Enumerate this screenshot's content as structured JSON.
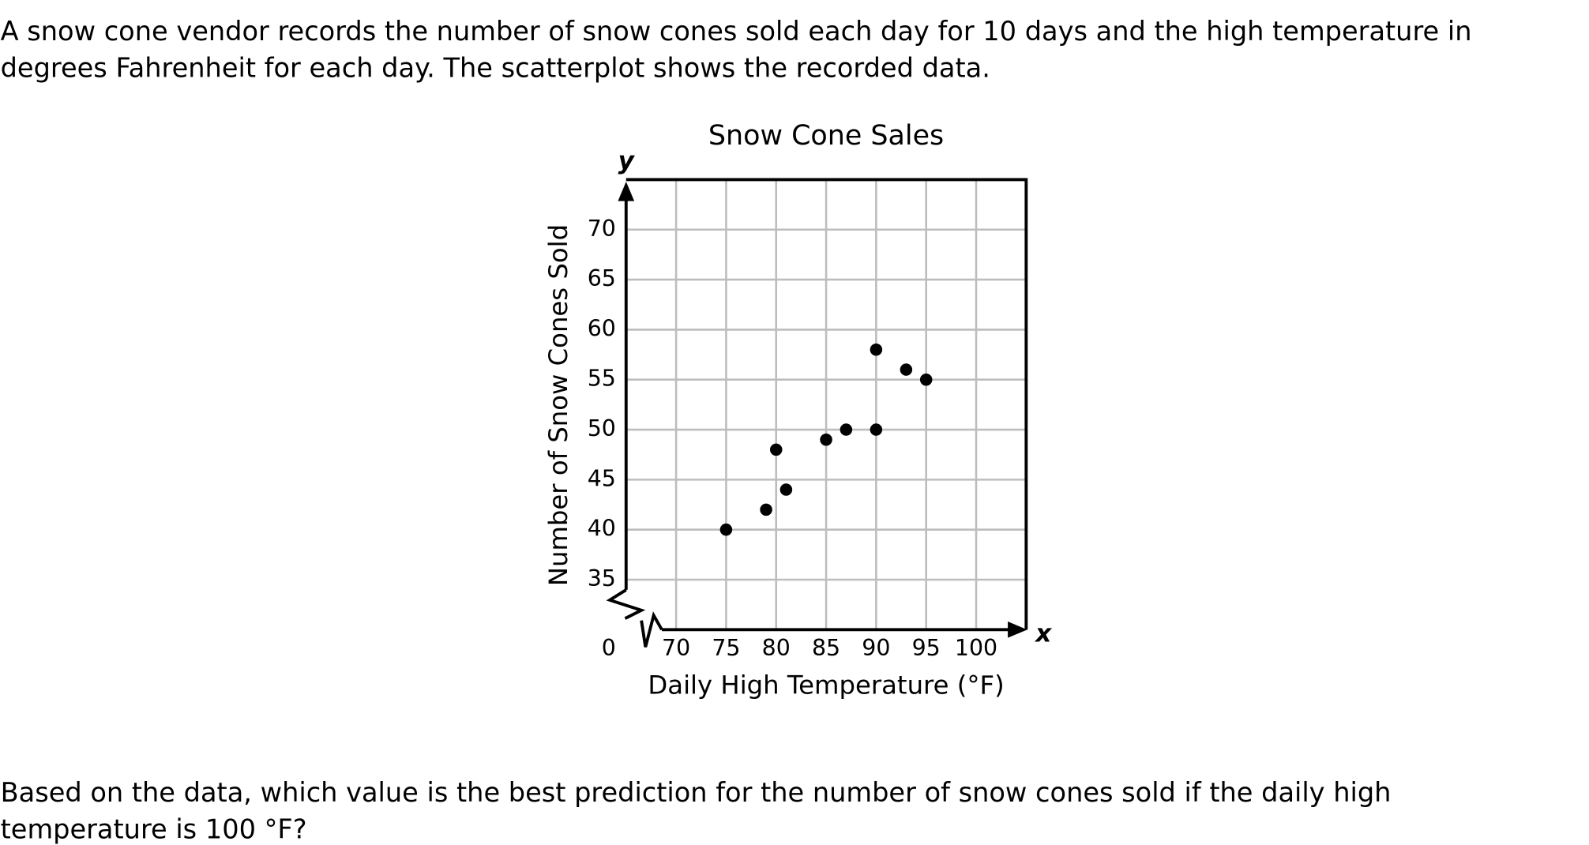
{
  "intro_lines": [
    "A snow cone vendor records the number of snow cones sold each day for 10 days and the high temperature in",
    "degrees Fahrenheit for each day. The scatterplot shows the recorded data."
  ],
  "chart_data": {
    "type": "scatter",
    "title": "Snow Cone Sales",
    "x_axis_label": "Daily High Temperature (°F)",
    "y_axis_label": "Number of Snow Cones Sold",
    "x_axis_letter": "x",
    "y_axis_letter": "y",
    "origin_label": "0",
    "x": [
      75,
      79,
      80,
      81,
      85,
      87,
      90,
      90,
      93,
      95
    ],
    "values": [
      40,
      42,
      48,
      44,
      49,
      50,
      50,
      58,
      56,
      55
    ],
    "color": "#000000",
    "xlim": [
      65,
      105
    ],
    "ylim": [
      30,
      75
    ],
    "xticks": [
      70,
      75,
      80,
      85,
      90,
      95,
      100
    ],
    "yticks": [
      35,
      40,
      45,
      50,
      55,
      60,
      65,
      70
    ],
    "grid": true
  },
  "question_lines": [
    "Based on the data, which value is the best prediction for the number of snow cones sold if the daily high",
    "temperature is 100 °F?"
  ]
}
